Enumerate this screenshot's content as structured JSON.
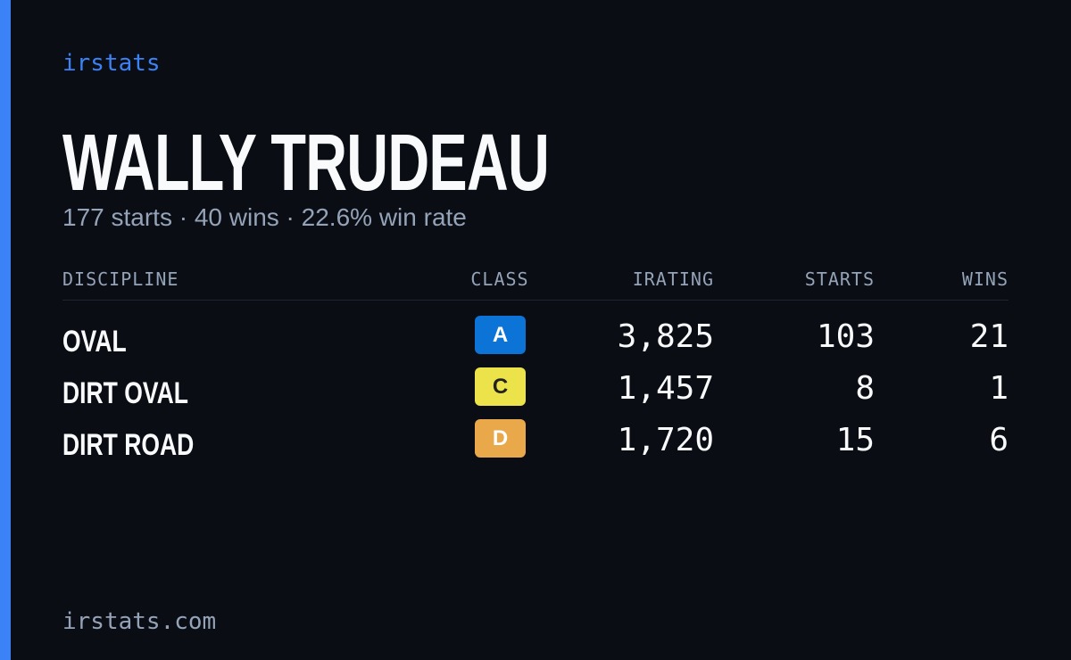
{
  "brand": "irstats",
  "driver": {
    "name": "WALLY TRUDEAU",
    "summary": "177 starts · 40 wins · 22.6% win rate"
  },
  "table": {
    "headers": [
      "DISCIPLINE",
      "CLASS",
      "IRATING",
      "STARTS",
      "WINS"
    ],
    "rows": [
      [
        "OVAL",
        "A",
        "3,825",
        "103",
        "21"
      ],
      [
        "DIRT OVAL",
        "C",
        "1,457",
        "8",
        "1"
      ],
      [
        "DIRT ROAD",
        "D",
        "1,720",
        "15",
        "6"
      ]
    ]
  },
  "footer": "irstats.com"
}
